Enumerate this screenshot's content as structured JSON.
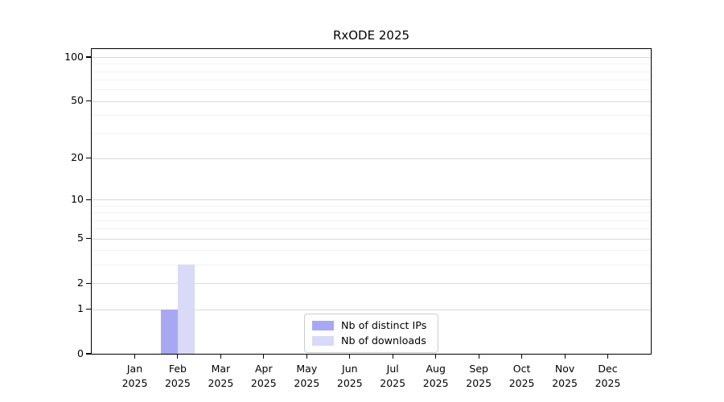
{
  "chart_data": {
    "type": "bar",
    "title": "RxODE 2025",
    "xlabel": "",
    "ylabel": "",
    "categories": [
      "Jan 2025",
      "Feb 2025",
      "Mar 2025",
      "Apr 2025",
      "May 2025",
      "Jun 2025",
      "Jul 2025",
      "Aug 2025",
      "Sep 2025",
      "Oct 2025",
      "Nov 2025",
      "Dec 2025"
    ],
    "series": [
      {
        "name": "Nb of distinct IPs",
        "color": "#a8a8f2",
        "values": [
          0,
          1,
          0,
          0,
          0,
          0,
          0,
          0,
          0,
          0,
          0,
          0
        ]
      },
      {
        "name": "Nb of downloads",
        "color": "#d9d9f8",
        "values": [
          0,
          3,
          0,
          0,
          0,
          0,
          0,
          0,
          0,
          0,
          0,
          0
        ]
      }
    ],
    "yscale": "log1p",
    "yticks": [
      0,
      1,
      2,
      5,
      10,
      20,
      50,
      100
    ],
    "minor_yticks": [
      3,
      4,
      6,
      7,
      8,
      9,
      30,
      40,
      60,
      70,
      80,
      90
    ],
    "ylim": [
      0,
      113.5
    ],
    "grid": "horizontal",
    "legend_position": "lower-center-inside"
  },
  "styles": {
    "background": "#ffffff",
    "axis_color": "#000000",
    "major_grid_color": "#d9d9d9",
    "minor_grid_color": "#f1f1f1",
    "legend_border_color": "#cccccc"
  }
}
